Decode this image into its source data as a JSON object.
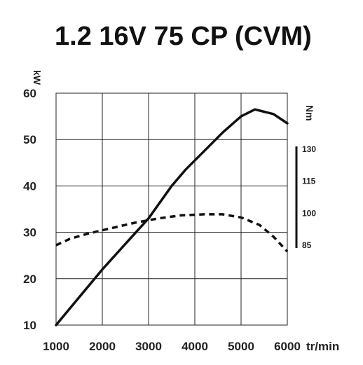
{
  "chart_data": {
    "type": "line",
    "title": "1.2 16V 75 CP (CVM)",
    "xlabel": "tr/min",
    "ylabel": "kW",
    "y2label": "Nm",
    "x_ticks": [
      1000,
      2000,
      3000,
      4000,
      5000,
      6000
    ],
    "y_ticks": [
      10,
      20,
      30,
      40,
      50,
      60
    ],
    "y2_ticks": [
      85,
      100,
      115,
      130
    ],
    "xlim": [
      1000,
      6000
    ],
    "ylim": [
      10,
      60
    ],
    "y2lim": [
      85,
      130
    ],
    "grid": true,
    "series": [
      {
        "axis": "left",
        "style": "solid",
        "x": [
          1000,
          1500,
          2000,
          2500,
          3000,
          3500,
          3800,
          4200,
          4600,
          5000,
          5300,
          5500,
          5700,
          6000
        ],
        "values": [
          10,
          16,
          22,
          27.5,
          33,
          40,
          43.5,
          47.5,
          51.5,
          55,
          56.5,
          56,
          55.5,
          53.5
        ]
      },
      {
        "axis": "right",
        "style": "dashed",
        "x": [
          1000,
          1300,
          1700,
          2200,
          2700,
          3200,
          3700,
          4200,
          4600,
          5000,
          5400,
          5700,
          6000
        ],
        "values": [
          85,
          88,
          90.5,
          93,
          95.5,
          97.5,
          99,
          99.5,
          99.5,
          98,
          94.5,
          89,
          82
        ]
      }
    ]
  }
}
